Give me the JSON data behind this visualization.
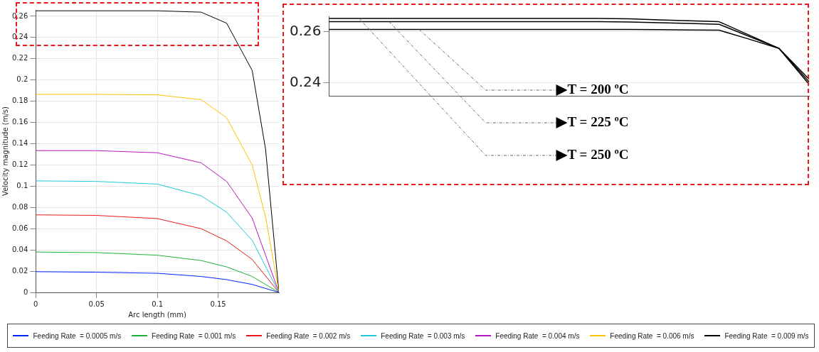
{
  "chart_data": [
    {
      "type": "line",
      "xlabel": "Arc length (mm)",
      "ylabel": "Velocity magnitude (m/s)",
      "x": [
        0,
        0.05,
        0.1,
        0.136,
        0.157,
        0.178,
        0.189,
        0.2
      ],
      "xlim": [
        0,
        0.2
      ],
      "xticks": [
        0,
        0.05,
        0.1,
        0.15
      ],
      "ylim": [
        0,
        0.266
      ],
      "yticks": [
        0,
        0.02,
        0.04,
        0.06,
        0.08,
        0.1,
        0.12,
        0.14,
        0.16,
        0.18,
        0.2,
        0.22,
        0.24,
        0.26
      ],
      "grid": true,
      "legend": "bottom",
      "marker": "none",
      "series": [
        {
          "name": "Feeding Rate  = 0.0005 m/s",
          "color": "#0022ff",
          "values": [
            0.0195,
            0.019,
            0.018,
            0.015,
            0.012,
            0.0075,
            0.0037,
            0
          ]
        },
        {
          "name": "Feeding Rate  = 0.001 m/s",
          "color": "#1db33c",
          "values": [
            0.038,
            0.0375,
            0.035,
            0.03,
            0.024,
            0.015,
            0.0075,
            0
          ]
        },
        {
          "name": "Feeding Rate  = 0.002 m/s",
          "color": "#e8191a",
          "values": [
            0.073,
            0.0725,
            0.0695,
            0.06,
            0.0485,
            0.031,
            0.0155,
            0
          ]
        },
        {
          "name": "Feeding Rate  = 0.003 m/s",
          "color": "#1cc8d8",
          "values": [
            0.105,
            0.1045,
            0.102,
            0.091,
            0.0755,
            0.049,
            0.0245,
            0
          ]
        },
        {
          "name": "Feeding Rate  = 0.004 m/s",
          "color": "#b816c0",
          "values": [
            0.1335,
            0.1335,
            0.1315,
            0.122,
            0.1045,
            0.07,
            0.035,
            0
          ]
        },
        {
          "name": "Feeding Rate  = 0.006 m/s",
          "color": "#ffc000",
          "values": [
            0.1865,
            0.1865,
            0.186,
            0.1815,
            0.1645,
            0.12,
            0.071,
            0
          ]
        },
        {
          "name": "Feeding Rate  = 0.009 m/s",
          "color": "#000000",
          "values": [
            0.2652,
            0.2652,
            0.2652,
            0.2639,
            0.2535,
            0.209,
            0.135,
            0
          ]
        }
      ]
    },
    {
      "type": "line",
      "categories": [
        null,
        null,
        null,
        null,
        null,
        null,
        null,
        null,
        null,
        null,
        null,
        null,
        null,
        null,
        null,
        null,
        null
      ],
      "ylim": [
        0.235,
        0.266
      ],
      "yticks": [
        0.24,
        0.26
      ],
      "grid": "y",
      "tick_labels": "y",
      "marker": "none",
      "series": [
        {
          "color": "#000000",
          "values": [
            0.2652,
            0.2652,
            0.2652,
            0.2652,
            0.2652,
            0.2652,
            0.2652,
            0.2652,
            0.2652,
            0.2652,
            0.265,
            0.2646,
            0.2643,
            0.2639,
            0.2587,
            0.2535,
            0.2415
          ]
        },
        {
          "color": "#000000",
          "values": [
            0.2639,
            0.2639,
            0.2639,
            0.2639,
            0.2639,
            0.2639,
            0.2639,
            0.2639,
            0.2639,
            0.2639,
            0.2638,
            0.2635,
            0.2632,
            0.2629,
            0.2582,
            0.2535,
            0.2405
          ]
        },
        {
          "color": "#000000",
          "values": [
            0.2609,
            0.2609,
            0.2609,
            0.2609,
            0.2609,
            0.2609,
            0.2609,
            0.2609,
            0.2609,
            0.2609,
            0.2609,
            0.2608,
            0.2607,
            0.2606,
            0.2571,
            0.2535,
            0.2395
          ]
        }
      ],
      "annotations": [
        "T = 200 ºC",
        "T = 225 ºC",
        "T = 250 ºC"
      ]
    }
  ]
}
